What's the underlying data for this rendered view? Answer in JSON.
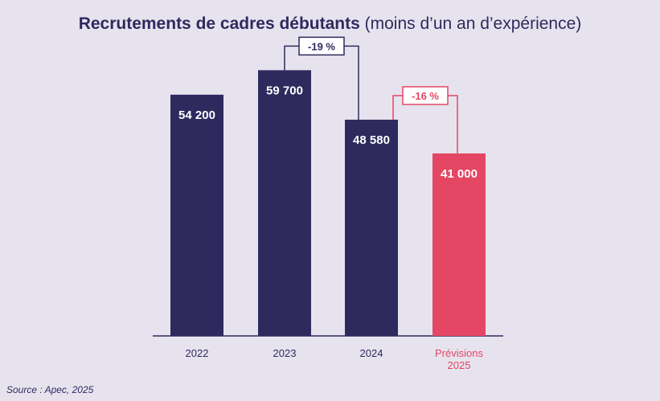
{
  "title": {
    "bold": "Recrutements de cadres débutants",
    "light": "(moins d’un an d’expérience)"
  },
  "source": "Source : Apec, 2025",
  "colors": {
    "actual": "#2e2a5e",
    "forecast": "#e44663",
    "background": "#e7e3ee"
  },
  "chart_data": {
    "type": "bar",
    "categories": [
      "2022",
      "2023",
      "2024",
      "Prévisions 2025"
    ],
    "category_lines": [
      [
        "2022"
      ],
      [
        "2023"
      ],
      [
        "2024"
      ],
      [
        "Prévisions",
        "2025"
      ]
    ],
    "values": [
      54200,
      59700,
      48580,
      41000
    ],
    "value_labels": [
      "54 200",
      "59 700",
      "48 580",
      "41 000"
    ],
    "forecast_index": 3,
    "ylim": [
      0,
      65000
    ],
    "grid": false,
    "annotations": [
      {
        "from": 1,
        "to": 2,
        "label": "-19 %",
        "kind": "actual"
      },
      {
        "from": 2,
        "to": 3,
        "label": "-16 %",
        "kind": "forecast"
      }
    ]
  }
}
